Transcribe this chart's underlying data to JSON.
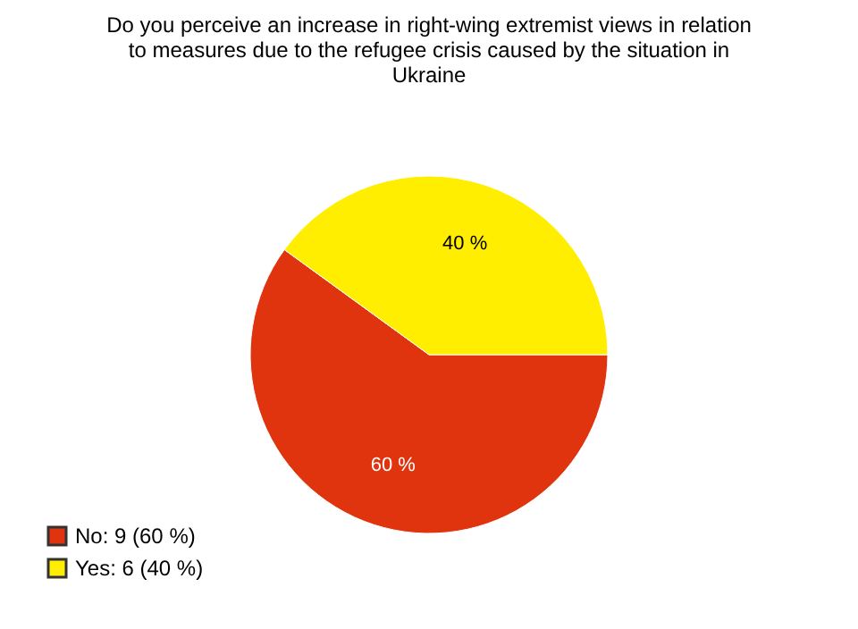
{
  "chart_data": {
    "type": "pie",
    "title": "Do you perceive an increase in right-wing extremist views in relation to measures due to the refugee crisis caused by the situation in Ukraine",
    "categories": [
      "No: 9 (60 %)",
      "Yes: 6 (40 %)"
    ],
    "values": [
      60,
      40
    ],
    "value_labels": [
      "60 %",
      "40 %"
    ],
    "colors": [
      "#e0340f",
      "#ffee00"
    ],
    "legend": "bottom left"
  }
}
